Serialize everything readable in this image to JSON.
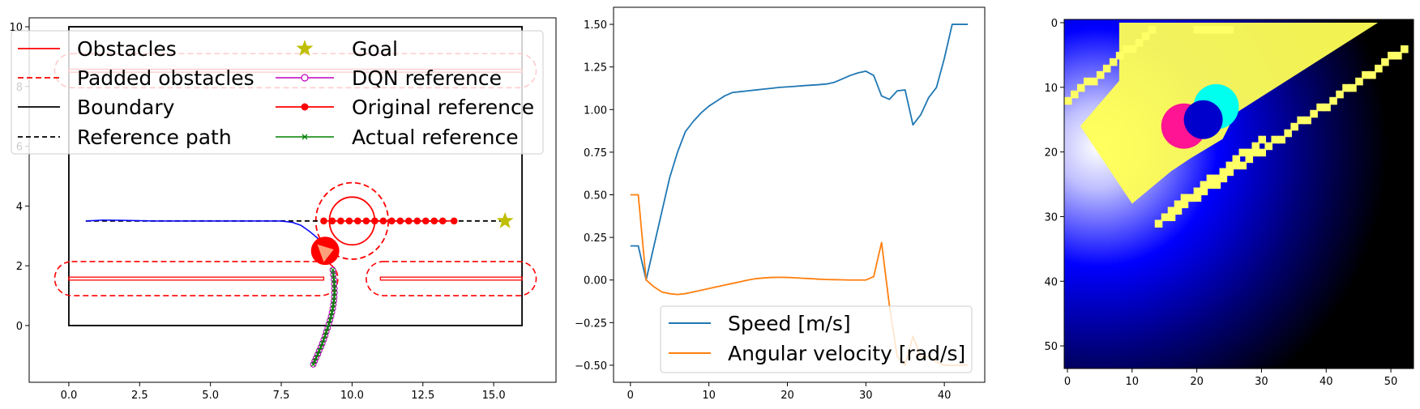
{
  "chart_data": [
    {
      "type": "line",
      "title": "",
      "xlabel": "",
      "ylabel": "",
      "xlim": [
        -1.4,
        17.2
      ],
      "ylim": [
        -1.9,
        10.3
      ],
      "x_ticks": [
        0.0,
        2.5,
        5.0,
        7.5,
        10.0,
        12.5,
        15.0
      ],
      "x_tick_labels": [
        "0.0",
        "2.5",
        "5.0",
        "7.5",
        "10.0",
        "12.5",
        "15.0"
      ],
      "y_ticks": [
        0,
        2,
        4,
        6,
        8,
        10
      ],
      "y_tick_labels": [
        "0",
        "2",
        "4",
        "6",
        "8",
        "10"
      ],
      "legend_position": "top",
      "legend": [
        "Obstacles",
        "Padded obstacles",
        "Boundary",
        "Reference path",
        "Goal",
        "DQN reference",
        "Original reference",
        "Actual reference"
      ],
      "colors": {
        "obstacle": "#ff0000",
        "boundary": "#000000",
        "goal": "#bfbf00",
        "dqn": "#bf00bf",
        "actual": "#008000",
        "robot_path": "#0000ff",
        "robot": "#ff0000",
        "robot_heading": "#ffa07a"
      },
      "boundary": [
        [
          0,
          0
        ],
        [
          16,
          0
        ],
        [
          16,
          10
        ],
        [
          0,
          10
        ]
      ],
      "obstacles": [
        {
          "x0": 0.0,
          "x1": 9.0,
          "y": 1.57
        },
        {
          "x0": 11.0,
          "x1": 16.0,
          "y": 1.57
        },
        {
          "x0": 0.0,
          "x1": 16.0,
          "y": 8.53
        }
      ],
      "obstacle_half_width": 0.05,
      "padded_obstacles": [
        {
          "x0": -0.5,
          "x1": 9.5,
          "y0": 1.0,
          "y1": 2.14
        },
        {
          "x0": 10.5,
          "x1": 16.5,
          "y0": 1.0,
          "y1": 2.14
        },
        {
          "x0": -0.5,
          "x1": 16.5,
          "y0": 7.96,
          "y1": 9.1
        }
      ],
      "circle_obstacle": {
        "cx": 10.0,
        "cy": 3.5,
        "r": 0.8,
        "padded_r": 1.28
      },
      "reference_path": [
        [
          0.6,
          3.5
        ],
        [
          15.4,
          3.5
        ]
      ],
      "goal": [
        15.4,
        3.5
      ],
      "original_reference": {
        "x": [
          9.0,
          9.3,
          9.6,
          9.9,
          10.2,
          10.5,
          10.8,
          11.1,
          11.4,
          11.7,
          12.0,
          12.3,
          12.6,
          12.9,
          13.2,
          13.6
        ],
        "y": [
          3.5,
          3.5,
          3.5,
          3.5,
          3.5,
          3.5,
          3.5,
          3.5,
          3.5,
          3.5,
          3.5,
          3.5,
          3.5,
          3.5,
          3.5,
          3.5
        ]
      },
      "dqn_reference": {
        "x": [
          8.63,
          8.68,
          8.73,
          8.79,
          8.84,
          8.9,
          8.95,
          9.0,
          9.05,
          9.09,
          9.14,
          9.18,
          9.22,
          9.26,
          9.29,
          9.32,
          9.34,
          9.36,
          9.37,
          9.38,
          9.38,
          9.37,
          9.36,
          9.34,
          9.32
        ],
        "y": [
          -1.3,
          -1.19,
          -1.08,
          -0.96,
          -0.84,
          -0.72,
          -0.6,
          -0.47,
          -0.34,
          -0.21,
          -0.08,
          0.05,
          0.18,
          0.31,
          0.44,
          0.57,
          0.7,
          0.83,
          0.96,
          1.1,
          1.24,
          1.39,
          1.54,
          1.7,
          1.86
        ]
      },
      "actual_reference": {
        "x": [
          8.63,
          8.68,
          8.73,
          8.79,
          8.84,
          8.9,
          8.95,
          9.0,
          9.05,
          9.09,
          9.14,
          9.18,
          9.22,
          9.26,
          9.29,
          9.32,
          9.34,
          9.36,
          9.37,
          9.38,
          9.38,
          9.37,
          9.36,
          9.34,
          9.32
        ],
        "y": [
          -1.3,
          -1.19,
          -1.08,
          -0.96,
          -0.84,
          -0.72,
          -0.6,
          -0.47,
          -0.34,
          -0.21,
          -0.08,
          0.05,
          0.18,
          0.31,
          0.44,
          0.57,
          0.7,
          0.83,
          0.96,
          1.1,
          1.24,
          1.39,
          1.54,
          1.7,
          1.86
        ]
      },
      "robot_path": {
        "x": [
          0.6,
          1.2,
          2.0,
          3.0,
          4.0,
          5.0,
          6.0,
          7.0,
          7.5,
          7.9,
          8.2,
          8.5,
          8.75,
          8.95,
          9.05
        ],
        "y": [
          3.5,
          3.53,
          3.52,
          3.5,
          3.5,
          3.5,
          3.5,
          3.5,
          3.5,
          3.45,
          3.35,
          3.15,
          2.95,
          2.75,
          2.5
        ]
      },
      "robot_position": [
        9.05,
        2.5
      ],
      "robot_radius": 0.5
    },
    {
      "type": "line",
      "title": "",
      "xlabel": "",
      "ylabel": "",
      "xlim": [
        -2.15,
        45.15
      ],
      "ylim": [
        -0.6,
        1.6
      ],
      "x_ticks": [
        0,
        10,
        20,
        30,
        40
      ],
      "x_tick_labels": [
        "0",
        "10",
        "20",
        "30",
        "40"
      ],
      "y_ticks": [
        -0.5,
        -0.25,
        0.0,
        0.25,
        0.5,
        0.75,
        1.0,
        1.25,
        1.5
      ],
      "y_tick_labels": [
        "−0.50",
        "−0.25",
        "0.00",
        "0.25",
        "0.50",
        "0.75",
        "1.00",
        "1.25",
        "1.50"
      ],
      "legend_position": "lower center",
      "series": [
        {
          "name": "Speed [m/s]",
          "color": "#1f77b4",
          "x": [
            0,
            1,
            2,
            3,
            4,
            5,
            6,
            7,
            8,
            9,
            10,
            11,
            12,
            13,
            14,
            15,
            16,
            17,
            18,
            19,
            20,
            21,
            22,
            23,
            24,
            25,
            26,
            27,
            28,
            29,
            30,
            31,
            32,
            33,
            34,
            35,
            36,
            37,
            38,
            39,
            40,
            41,
            42,
            43
          ],
          "y": [
            0.2,
            0.2,
            0.0,
            0.2,
            0.4,
            0.6,
            0.75,
            0.87,
            0.93,
            0.98,
            1.02,
            1.05,
            1.08,
            1.1,
            1.105,
            1.11,
            1.115,
            1.12,
            1.125,
            1.13,
            1.133,
            1.136,
            1.14,
            1.143,
            1.146,
            1.15,
            1.16,
            1.18,
            1.2,
            1.215,
            1.225,
            1.2,
            1.08,
            1.06,
            1.11,
            1.115,
            0.91,
            0.97,
            1.07,
            1.13,
            1.3,
            1.5,
            1.5,
            1.5
          ]
        },
        {
          "name": "Angular velocity [rad/s]",
          "color": "#ff7f0e",
          "x": [
            0,
            1,
            2,
            3,
            4,
            5,
            6,
            7,
            8,
            9,
            10,
            11,
            12,
            13,
            14,
            15,
            16,
            17,
            18,
            19,
            20,
            21,
            22,
            23,
            24,
            25,
            26,
            27,
            28,
            29,
            30,
            31,
            32,
            33,
            34,
            35,
            36,
            37,
            38,
            39,
            40,
            41,
            42,
            43
          ],
          "y": [
            0.5,
            0.5,
            0.0,
            -0.04,
            -0.07,
            -0.08,
            -0.085,
            -0.08,
            -0.07,
            -0.06,
            -0.05,
            -0.04,
            -0.03,
            -0.02,
            -0.01,
            0.0,
            0.008,
            0.012,
            0.015,
            0.016,
            0.015,
            0.013,
            0.01,
            0.008,
            0.005,
            0.003,
            0.002,
            0.001,
            0.0,
            0.0,
            0.0,
            0.02,
            0.22,
            -0.15,
            -0.45,
            -0.5,
            -0.33,
            -0.45,
            -0.45,
            -0.48,
            -0.5,
            -0.5,
            -0.5,
            -0.5
          ]
        }
      ]
    },
    {
      "type": "heatmap",
      "title": "",
      "xlabel": "",
      "ylabel": "",
      "grid_size": [
        54,
        54
      ],
      "xlim": [
        -0.5,
        53.5
      ],
      "ylim": [
        53.5,
        -0.5
      ],
      "x_ticks": [
        0,
        10,
        20,
        30,
        40,
        50
      ],
      "x_tick_labels": [
        "0",
        "10",
        "20",
        "30",
        "40",
        "50"
      ],
      "y_ticks": [
        0,
        10,
        20,
        30,
        40,
        50
      ],
      "y_tick_labels": [
        "0",
        "10",
        "20",
        "30",
        "40",
        "50"
      ],
      "colors": {
        "gradient_center": "#ffffff",
        "gradient_mid": "#0000ff",
        "gradient_edge": "#000000",
        "free_space": "#ffff55",
        "obstacle_band": "#ffff66",
        "robot": "#0000cc",
        "robot_trail": "#ff1493",
        "target": "#00ffee"
      },
      "gradient_center": [
        25,
        17
      ],
      "robot": {
        "x": 21,
        "y": 15,
        "r": 3
      },
      "robot_trail": {
        "x": 18,
        "y": 16,
        "r": 3.5
      },
      "target": {
        "x": 23,
        "y": 13,
        "r": 3.5
      },
      "free_polygon": [
        [
          8,
          0
        ],
        [
          48,
          0
        ],
        [
          26,
          14
        ],
        [
          24,
          18
        ],
        [
          19,
          21
        ],
        [
          16,
          23
        ],
        [
          10,
          28
        ],
        [
          2,
          16
        ],
        [
          8,
          9
        ]
      ],
      "obstacle_bands": [
        {
          "x0": 0,
          "y0": 12,
          "x1": 13,
          "y1": 1
        },
        {
          "x0": 14,
          "y0": 31,
          "x1": 52,
          "y1": 4
        },
        {
          "x0": 20,
          "y0": 1,
          "x1": 25,
          "y1": 1
        },
        {
          "x0": 16,
          "y0": 29,
          "x1": 30,
          "y1": 18
        }
      ]
    }
  ]
}
